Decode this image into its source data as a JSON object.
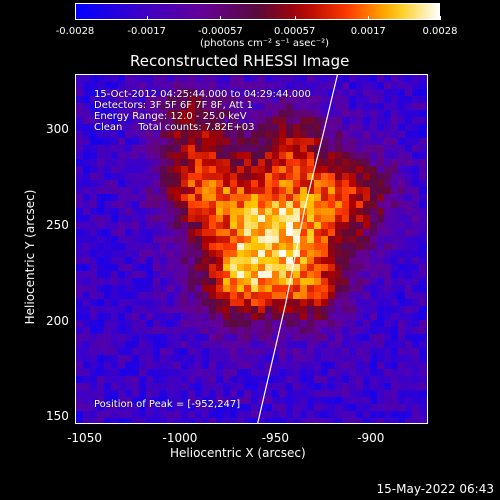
{
  "chart_data": {
    "type": "heatmap",
    "title": "Reconstructed RHESSI Image",
    "xlabel": "Heliocentric X (arcsec)",
    "ylabel": "Heliocentric Y (arcsec)",
    "xlim": [
      -1055,
      -870
    ],
    "ylim": [
      146,
      329
    ],
    "x_ticks": [
      "-1050",
      "-1000",
      "-950",
      "-900"
    ],
    "x_tick_values": [
      -1050,
      -1000,
      -950,
      -900
    ],
    "y_ticks": [
      "300",
      "250",
      "200",
      "150"
    ],
    "y_tick_values": [
      300,
      250,
      200,
      150
    ],
    "colorbar": {
      "ticks": [
        "-0.0028",
        "-0.0017",
        "-0.00057",
        "0.00057",
        "0.0017",
        "0.0028"
      ],
      "tick_values": [
        -0.0028,
        -0.0017,
        -0.00057,
        0.00057,
        0.0017,
        0.0028
      ],
      "range": [
        -0.0028,
        0.0028
      ],
      "units": "(photons cm⁻² s⁻¹ asec⁻²)"
    },
    "peak": {
      "x": -952,
      "y": 247
    },
    "limb": [
      [
        -960,
        146
      ],
      [
        -945,
        210
      ],
      [
        -935,
        260
      ],
      [
        -925,
        300
      ],
      [
        -918,
        329
      ]
    ],
    "annotations": {
      "time": "15-Oct-2012 04:25:44.000 to 04:29:44.000",
      "detectors": "Detectors: 3F 5F 6F 7F 8F, Att 1",
      "energy": "Energy Range: 12.0 - 25.0 keV",
      "clean": "Clean     Total counts: 7.82E+03",
      "peak_label": "Position of Peak = [-952,247]"
    }
  },
  "footer": {
    "date": "15-May-2022 06:43"
  }
}
